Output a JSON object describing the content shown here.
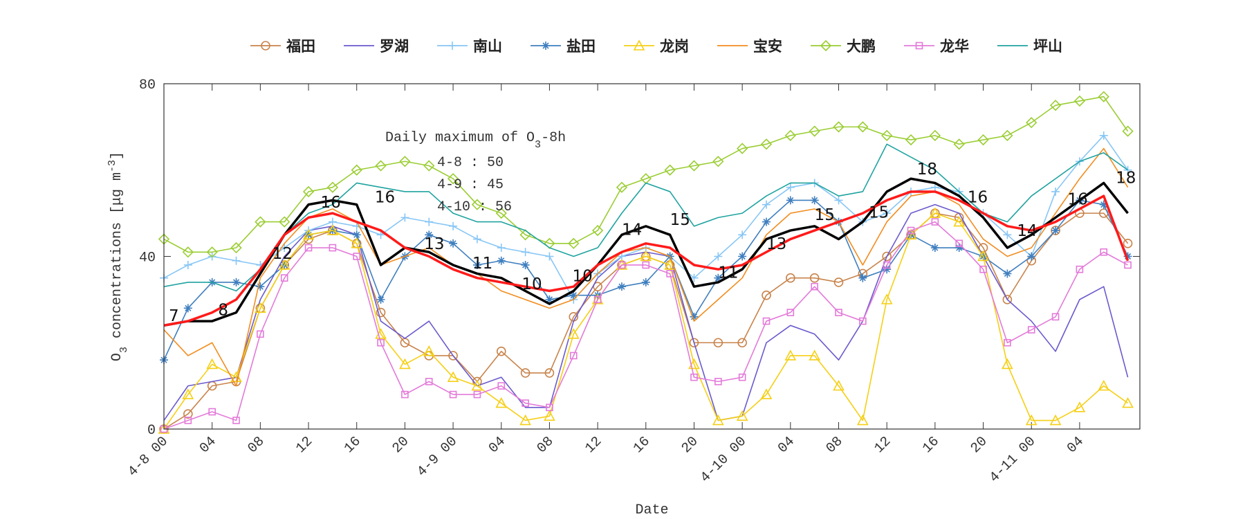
{
  "chart_data": {
    "type": "line",
    "xlabel": "Date",
    "ylabel": [
      {
        "text": "O"
      },
      {
        "text": "3",
        "shift": "sub"
      },
      {
        "text": " concentrations ["
      },
      {
        "text": "μg m"
      },
      {
        "text": "-3",
        "shift": "super"
      },
      {
        "text": "]"
      }
    ],
    "x": [
      0,
      2,
      4,
      6,
      8,
      10,
      12,
      14,
      16,
      18,
      20,
      22,
      24,
      26,
      28,
      30,
      32,
      34,
      36,
      38,
      40,
      42,
      44,
      46,
      48,
      50,
      52,
      54,
      56,
      58,
      60,
      62,
      64,
      66,
      68,
      70,
      72,
      74,
      76,
      78,
      80
    ],
    "xlim": [
      0,
      81
    ],
    "ylim": [
      0,
      80
    ],
    "yticks": [
      0,
      40,
      80
    ],
    "xticks": [
      {
        "value": 0,
        "label": "4-8 00"
      },
      {
        "value": 4,
        "label": "04"
      },
      {
        "value": 8,
        "label": "08"
      },
      {
        "value": 12,
        "label": "12"
      },
      {
        "value": 16,
        "label": "16"
      },
      {
        "value": 20,
        "label": "20"
      },
      {
        "value": 24,
        "label": "4-9 00"
      },
      {
        "value": 28,
        "label": "04"
      },
      {
        "value": 32,
        "label": "08"
      },
      {
        "value": 36,
        "label": "12"
      },
      {
        "value": 40,
        "label": "16"
      },
      {
        "value": 44,
        "label": "20"
      },
      {
        "value": 48,
        "label": "4-10 00"
      },
      {
        "value": 52,
        "label": "04"
      },
      {
        "value": 56,
        "label": "08"
      },
      {
        "value": 60,
        "label": "12"
      },
      {
        "value": 64,
        "label": "16"
      },
      {
        "value": 68,
        "label": "20"
      },
      {
        "value": 72,
        "label": "4-11 00"
      },
      {
        "value": 76,
        "label": "04"
      }
    ],
    "legend": "top",
    "grid": false,
    "series": [
      {
        "name": "福田",
        "color": "#c8834a",
        "marker": "circle",
        "values": [
          0,
          3.5,
          10,
          11,
          28,
          38,
          44,
          46,
          43,
          27,
          20,
          17,
          17,
          11,
          18,
          13,
          13,
          26,
          33,
          38,
          40,
          38,
          20,
          20,
          20,
          31,
          35,
          35,
          34,
          36,
          40,
          45,
          50,
          49,
          42,
          30,
          39,
          46,
          50,
          50,
          43
        ]
      },
      {
        "name": "罗湖",
        "color": "#6a5acd",
        "marker": "none",
        "values": [
          2,
          10,
          11,
          12,
          30,
          40,
          46,
          47,
          45,
          25,
          21,
          25,
          17,
          10,
          12,
          5,
          5,
          25,
          35,
          40,
          41,
          40,
          20,
          2,
          3,
          20,
          24,
          22,
          16,
          25,
          40,
          50,
          52,
          50,
          40,
          30,
          25,
          18,
          30,
          33,
          12
        ]
      },
      {
        "name": "南山",
        "color": "#87c6f5",
        "marker": "plus",
        "values": [
          35,
          38,
          40,
          39,
          38,
          42,
          46,
          48,
          47,
          45,
          49,
          48,
          47,
          44,
          42,
          41,
          40,
          30,
          36,
          40,
          42,
          40,
          35,
          40,
          45,
          52,
          56,
          57,
          53,
          48,
          50,
          55,
          56,
          55,
          50,
          45,
          40,
          55,
          62,
          68,
          60
        ]
      },
      {
        "name": "盐田",
        "color": "#3f7fbf",
        "marker": "star",
        "values": [
          16,
          28,
          34,
          34,
          33,
          38,
          45,
          46,
          45,
          30,
          40,
          45,
          43,
          38,
          39,
          38,
          30,
          31,
          31,
          33,
          34,
          40,
          26,
          35,
          40,
          48,
          53,
          53,
          48,
          35,
          37,
          45,
          42,
          42,
          40,
          36,
          40,
          46,
          53,
          52,
          40
        ]
      },
      {
        "name": "龙岗",
        "color": "#f5cf14",
        "marker": "triangle",
        "values": [
          0,
          8,
          15,
          12,
          28,
          38,
          45,
          46,
          43,
          22,
          15,
          18,
          12,
          10,
          6,
          2,
          3,
          22,
          30,
          38,
          40,
          38,
          15,
          2,
          3,
          8,
          17,
          17,
          10,
          2,
          30,
          45,
          50,
          48,
          40,
          15,
          2,
          2,
          5,
          10,
          6
        ]
      },
      {
        "name": "宝安",
        "color": "#f28c1e",
        "marker": "none",
        "values": [
          23,
          17,
          20,
          10,
          35,
          43,
          49,
          51,
          48,
          38,
          40,
          42,
          38,
          36,
          32,
          30,
          28,
          30,
          36,
          41,
          42,
          40,
          25,
          30,
          35,
          45,
          50,
          51,
          48,
          38,
          48,
          54,
          55,
          52,
          44,
          40,
          42,
          50,
          58,
          65,
          56
        ]
      },
      {
        "name": "大鹏",
        "color": "#9acd32",
        "marker": "diamond",
        "values": [
          44,
          41,
          41,
          42,
          48,
          48,
          55,
          56,
          60,
          61,
          62,
          61,
          58,
          52,
          50,
          45,
          43,
          43,
          46,
          56,
          58,
          60,
          61,
          62,
          65,
          66,
          68,
          69,
          70,
          70,
          68,
          67,
          68,
          66,
          67,
          68,
          71,
          75,
          76,
          77,
          69
        ]
      },
      {
        "name": "龙华",
        "color": "#e37ad9",
        "marker": "square",
        "values": [
          0,
          2,
          4,
          2,
          22,
          35,
          42,
          42,
          40,
          20,
          8,
          11,
          8,
          8,
          10,
          6,
          5,
          17,
          30,
          38,
          38,
          36,
          12,
          11,
          12,
          25,
          27,
          33,
          27,
          25,
          38,
          46,
          48,
          43,
          37,
          20,
          23,
          26,
          37,
          41,
          38
        ]
      },
      {
        "name": "坪山",
        "color": "#1fa3a0",
        "marker": "none",
        "values": [
          33,
          34,
          34,
          32,
          37,
          45,
          50,
          52,
          57,
          56,
          55,
          55,
          50,
          48,
          48,
          46,
          42,
          40,
          42,
          50,
          57,
          55,
          47,
          49,
          50,
          54,
          57,
          57,
          54,
          55,
          66,
          63,
          60,
          55,
          50,
          48,
          54,
          58,
          62,
          64,
          60
        ]
      },
      {
        "color": "#000000",
        "marker": "none",
        "linewidth": 3.5,
        "values": [
          24,
          25,
          25,
          27,
          36,
          45,
          52,
          53,
          52,
          38,
          42,
          41,
          38,
          36,
          35,
          32,
          29,
          32,
          38,
          45,
          47,
          45,
          33,
          34,
          37,
          44,
          46,
          47,
          44,
          48,
          55,
          58,
          57,
          54,
          49,
          42,
          45,
          49,
          53,
          57,
          50
        ]
      },
      {
        "color": "#ff1a1a",
        "marker": "none",
        "linewidth": 3.5,
        "values": [
          24,
          25,
          27,
          30,
          37,
          45,
          49,
          50,
          48,
          46,
          42,
          40,
          37,
          35,
          34,
          33,
          32,
          33,
          38,
          41,
          43,
          42,
          38,
          37,
          38,
          41,
          44,
          46,
          48,
          50,
          53,
          55,
          55,
          53,
          50,
          47,
          46,
          48,
          51,
          54,
          39
        ]
      }
    ],
    "annotations": [
      {
        "text": "7",
        "x": 0.4,
        "y": 25
      },
      {
        "text": "8",
        "x": 4.5,
        "y": 26.4
      },
      {
        "text": "12",
        "x": 9,
        "y": 39.4
      },
      {
        "text": "16",
        "x": 13,
        "y": 51.3
      },
      {
        "text": "16",
        "x": 17.5,
        "y": 52.5
      },
      {
        "text": "13",
        "x": 21.6,
        "y": 41.7
      },
      {
        "text": "11",
        "x": 25.6,
        "y": 37.2
      },
      {
        "text": "10",
        "x": 29.7,
        "y": 32.4
      },
      {
        "text": "10",
        "x": 33.9,
        "y": 34.2
      },
      {
        "text": "14",
        "x": 38,
        "y": 45
      },
      {
        "text": "15",
        "x": 42,
        "y": 47.3
      },
      {
        "text": "11",
        "x": 46,
        "y": 35
      },
      {
        "text": "13",
        "x": 50,
        "y": 41.7
      },
      {
        "text": "15",
        "x": 54,
        "y": 48.4
      },
      {
        "text": "15",
        "x": 58.5,
        "y": 49
      },
      {
        "text": "18",
        "x": 62.5,
        "y": 59
      },
      {
        "text": "16",
        "x": 66.7,
        "y": 52.5
      },
      {
        "text": "14",
        "x": 70.8,
        "y": 44.7
      },
      {
        "text": "16",
        "x": 75,
        "y": 52
      },
      {
        "text": "18",
        "x": 79,
        "y": 57
      }
    ],
    "textbox": {
      "title": [
        {
          "text": "Daily maximum of O"
        },
        {
          "text": "3",
          "shift": "sub"
        },
        {
          "text": "-8h"
        }
      ],
      "rows": [
        "4-8 : 50",
        "4-9 : 45",
        "4-10 : 56"
      ]
    }
  }
}
